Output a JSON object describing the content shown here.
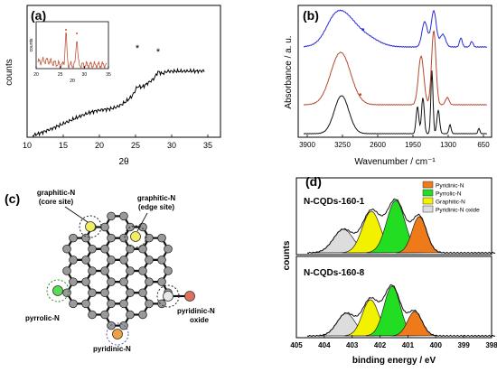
{
  "figure": {
    "panel_a": {
      "label": "(a)",
      "ylabel": "counts",
      "xlabel": "2θ",
      "xticks": [
        "10",
        "15",
        "20",
        "25",
        "30",
        "35"
      ],
      "star": "*",
      "inset": {
        "ylabel": "counts",
        "xlabel": "2θ",
        "xticks": [
          "20",
          "25",
          "30",
          "35"
        ]
      }
    },
    "panel_b": {
      "label": "(b)",
      "ylabel": "Absorbance / a. u.",
      "xlabel": "Wavenumber / cm⁻¹",
      "xticks": [
        "3900",
        "3250",
        "2600",
        "1950",
        "1300",
        "650"
      ],
      "dot": "•",
      "colors": [
        "#2a2ad6",
        "#b8492e",
        "#111111"
      ]
    },
    "panel_c": {
      "label": "(c)",
      "sites": {
        "graphitic_core": "graphitic-N",
        "graphitic_core_sub": "(core site)",
        "graphitic_edge": "graphitic-N",
        "graphitic_edge_sub": "(edge site)",
        "pyrrolic": "pyrrolic-N",
        "pyridinic": "pyridinic-N",
        "pyridinic_oxide": "pyridinic-N",
        "pyridinic_oxide_sub": "oxide"
      }
    },
    "panel_d": {
      "label": "(d)",
      "ylabel": "counts",
      "xlabel": "binding energy / eV",
      "xticks": [
        "405",
        "404",
        "403",
        "402",
        "401",
        "400",
        "399",
        "398"
      ],
      "legend": [
        {
          "name": "Pyridinic-N",
          "color": "#ee7a1a"
        },
        {
          "name": "Pyrrolic-N",
          "color": "#22dd22"
        },
        {
          "name": "Graphitic-N",
          "color": "#f2f200"
        },
        {
          "name": "Pyridinic-N oxide",
          "color": "#dddddd"
        }
      ],
      "top_title": "N-CQDs-160-1",
      "bottom_title": "N-CQDs-160-8"
    }
  }
}
